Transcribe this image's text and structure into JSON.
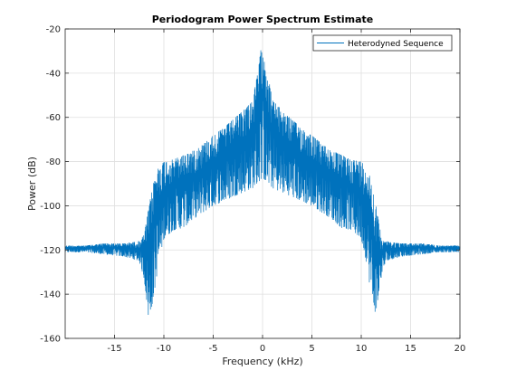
{
  "chart_data": {
    "type": "line",
    "title": "Periodogram Power Spectrum Estimate",
    "xlabel": "Frequency (kHz)",
    "ylabel": "Power (dB)",
    "xlim": [
      -20,
      20
    ],
    "ylim": [
      -160,
      -20
    ],
    "xticks": [
      -15,
      -10,
      -5,
      0,
      5,
      10,
      15,
      20
    ],
    "yticks": [
      -160,
      -140,
      -120,
      -100,
      -80,
      -60,
      -40,
      -20
    ],
    "grid": true,
    "legend": {
      "placement": "top-right",
      "entries": [
        "Heterodyned Sequence"
      ]
    },
    "series": [
      {
        "name": "Heterodyned Sequence",
        "color": "#0072bd",
        "envelope": {
          "x": [
            -20,
            -18,
            -16,
            -14,
            -12.5,
            -12,
            -11.5,
            -11,
            -10.5,
            -10,
            -9,
            -8,
            -7,
            -6,
            -5,
            -4,
            -3,
            -2,
            -1,
            -0.5,
            0,
            0.5,
            1,
            2,
            3,
            4,
            5,
            6,
            7,
            8,
            9,
            10,
            10.5,
            11,
            11.5,
            12,
            12.5,
            14,
            16,
            18,
            20
          ],
          "max": [
            -118,
            -118,
            -117,
            -117,
            -116,
            -113,
            -100,
            -88,
            -82,
            -80,
            -79,
            -77,
            -75,
            -72,
            -68,
            -65,
            -61,
            -57,
            -52,
            -40,
            -24,
            -40,
            -52,
            -57,
            -61,
            -65,
            -68,
            -72,
            -75,
            -77,
            -79,
            -80,
            -82,
            -88,
            -100,
            -113,
            -116,
            -117,
            -117,
            -118,
            -118
          ],
          "min": [
            -121,
            -121,
            -122,
            -123,
            -125,
            -133,
            -153,
            -140,
            -125,
            -115,
            -111,
            -110,
            -106,
            -103,
            -100,
            -98,
            -96,
            -94,
            -92,
            -90,
            -87,
            -90,
            -92,
            -94,
            -96,
            -98,
            -100,
            -103,
            -106,
            -110,
            -111,
            -115,
            -125,
            -140,
            -150,
            -133,
            -125,
            -123,
            -122,
            -121,
            -121
          ]
        }
      }
    ]
  }
}
